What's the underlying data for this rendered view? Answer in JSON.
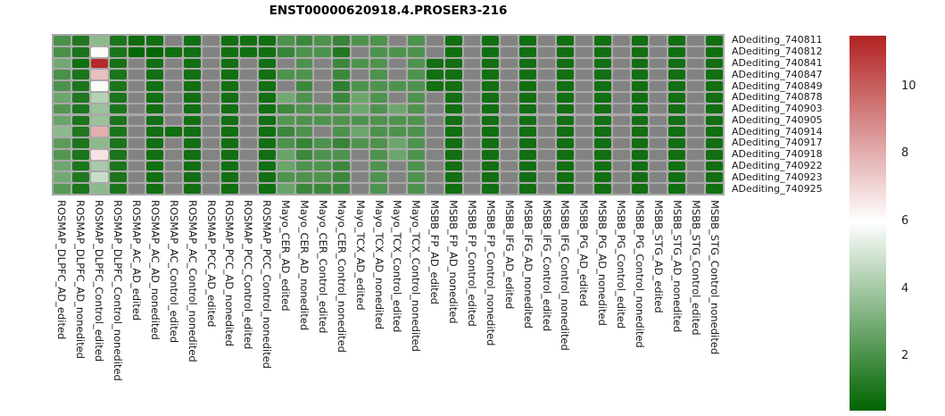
{
  "title": "ENST00000620918.4.PROSER3-216",
  "chart_data": {
    "type": "heatmap",
    "title": "ENST00000620918.4.PROSER3-216",
    "rows": [
      "ADediting_740811",
      "ADediting_740812",
      "ADediting_740841",
      "ADediting_740847",
      "ADediting_740849",
      "ADediting_740878",
      "ADediting_740903",
      "ADediting_740905",
      "ADediting_740914",
      "ADediting_740917",
      "ADediting_740918",
      "ADediting_740922",
      "ADediting_740923",
      "ADediting_740925"
    ],
    "columns": [
      "ROSMAP_DLPFC_AD_edited",
      "ROSMAP_DLPFC_AD_nonedited",
      "ROSMAP_DLPFC_Control_edited",
      "ROSMAP_DLPFC_Control_nonedited",
      "ROSMAP_AC_AD_edited",
      "ROSMAP_AC_AD_nonedited",
      "ROSMAP_AC_Control_edited",
      "ROSMAP_AC_Control_nonedited",
      "ROSMAP_PCC_AD_edited",
      "ROSMAP_PCC_AD_nonedited",
      "ROSMAP_PCC_Control_edited",
      "ROSMAP_PCC_Control_nonedited",
      "Mayo_CER_AD_edited",
      "Mayo_CER_AD_nonedited",
      "Mayo_CER_Control_edited",
      "Mayo_CER_Control_nonedited",
      "Mayo_TCX_AD_edited",
      "Mayo_TCX_AD_nonedited",
      "Mayo_TCX_Control_edited",
      "Mayo_TCX_Control_nonedited",
      "MSBB_FP_AD_edited",
      "MSBB_FP_AD_nonedited",
      "MSBB_FP_Control_edited",
      "MSBB_FP_Control_nonedited",
      "MSBB_IFG_AD_edited",
      "MSBB_IFG_AD_nonedited",
      "MSBB_IFG_Control_edited",
      "MSBB_IFG_Control_nonedited",
      "MSBB_PG_AD_edited",
      "MSBB_PG_AD_nonedited",
      "MSBB_PG_Control_edited",
      "MSBB_PG_Control_nonedited",
      "MSBB_STG_AD_edited",
      "MSBB_STG_AD_nonedited",
      "MSBB_STG_Control_edited",
      "MSBB_STG_Control_nonedited"
    ],
    "values": [
      [
        2.0,
        1.1,
        3.5,
        1.0,
        0.7,
        0.8,
        null,
        0.8,
        null,
        0.8,
        0.8,
        0.8,
        2.1,
        1.7,
        2.1,
        1.6,
        2.1,
        2.1,
        null,
        2.1,
        null,
        0.8,
        null,
        0.8,
        null,
        0.8,
        null,
        0.8,
        null,
        0.8,
        null,
        0.8,
        null,
        0.8,
        null,
        0.8
      ],
      [
        2.0,
        1.0,
        5.9,
        1.0,
        0.5,
        0.5,
        0.8,
        0.8,
        null,
        0.8,
        0.8,
        0.8,
        1.6,
        2.1,
        2.1,
        1.1,
        null,
        2.1,
        2.1,
        2.1,
        null,
        0.8,
        null,
        0.8,
        null,
        0.8,
        null,
        0.8,
        null,
        0.8,
        null,
        0.8,
        null,
        0.8,
        null,
        0.8
      ],
      [
        2.9,
        0.8,
        11.3,
        0.9,
        null,
        0.8,
        null,
        0.8,
        null,
        0.8,
        null,
        0.8,
        null,
        2.1,
        null,
        1.7,
        2.1,
        2.1,
        null,
        2.1,
        0.8,
        0.8,
        null,
        0.8,
        null,
        0.8,
        null,
        0.8,
        null,
        0.8,
        null,
        0.8,
        null,
        0.8,
        null,
        0.8
      ],
      [
        2.0,
        1.0,
        7.6,
        1.0,
        null,
        0.8,
        null,
        0.8,
        null,
        0.8,
        null,
        0.8,
        2.1,
        2.1,
        null,
        1.7,
        null,
        2.1,
        null,
        2.1,
        0.8,
        0.8,
        null,
        0.8,
        null,
        0.8,
        null,
        0.8,
        null,
        0.8,
        null,
        0.8,
        null,
        0.8,
        null,
        0.8
      ],
      [
        2.1,
        1.0,
        5.9,
        1.0,
        null,
        0.8,
        null,
        0.8,
        null,
        0.8,
        null,
        0.8,
        null,
        1.7,
        null,
        1.4,
        2.1,
        2.1,
        2.1,
        2.1,
        0.8,
        0.8,
        null,
        0.8,
        null,
        0.8,
        null,
        0.8,
        null,
        0.8,
        null,
        0.8,
        null,
        0.8,
        null,
        0.8
      ],
      [
        2.8,
        1.1,
        4.4,
        1.0,
        null,
        0.8,
        null,
        0.8,
        null,
        0.8,
        null,
        0.8,
        2.9,
        2.1,
        null,
        1.7,
        2.8,
        2.1,
        null,
        2.1,
        null,
        0.8,
        null,
        0.8,
        null,
        0.8,
        null,
        0.8,
        null,
        0.8,
        null,
        0.8,
        null,
        0.8,
        null,
        0.8
      ],
      [
        2.2,
        1.0,
        3.8,
        1.0,
        null,
        0.8,
        null,
        0.8,
        null,
        0.8,
        null,
        0.8,
        1.7,
        2.1,
        2.1,
        2.1,
        2.8,
        2.1,
        2.8,
        2.1,
        null,
        0.8,
        null,
        0.8,
        null,
        0.8,
        null,
        0.8,
        null,
        0.8,
        null,
        0.8,
        null,
        0.8,
        null,
        0.8
      ],
      [
        2.7,
        1.0,
        3.8,
        1.0,
        null,
        0.8,
        null,
        0.8,
        null,
        0.8,
        null,
        0.8,
        2.2,
        2.1,
        2.1,
        2.1,
        2.1,
        2.1,
        2.1,
        2.1,
        null,
        0.8,
        null,
        0.8,
        null,
        0.8,
        null,
        0.8,
        null,
        0.8,
        null,
        0.8,
        null,
        0.8,
        null,
        0.8
      ],
      [
        3.5,
        1.1,
        8.0,
        1.0,
        null,
        0.8,
        0.8,
        0.8,
        null,
        0.8,
        null,
        0.8,
        1.7,
        2.1,
        null,
        2.1,
        2.8,
        2.1,
        2.1,
        2.1,
        null,
        0.8,
        null,
        0.8,
        null,
        0.8,
        null,
        0.8,
        null,
        0.8,
        null,
        0.8,
        null,
        0.8,
        null,
        0.8
      ],
      [
        2.4,
        1.0,
        3.5,
        1.0,
        null,
        0.8,
        null,
        0.8,
        null,
        0.8,
        null,
        0.8,
        2.1,
        1.6,
        2.1,
        1.6,
        2.1,
        2.1,
        2.8,
        2.1,
        null,
        0.8,
        null,
        0.8,
        null,
        0.8,
        null,
        0.8,
        null,
        0.8,
        null,
        0.8,
        null,
        0.8,
        null,
        0.8
      ],
      [
        2.2,
        1.0,
        6.7,
        1.0,
        null,
        0.8,
        null,
        0.8,
        null,
        0.8,
        null,
        0.8,
        2.7,
        1.7,
        2.1,
        2.1,
        null,
        2.1,
        2.8,
        2.1,
        null,
        0.8,
        null,
        0.8,
        null,
        0.8,
        null,
        0.8,
        null,
        0.8,
        null,
        0.8,
        null,
        0.8,
        null,
        0.8
      ],
      [
        2.8,
        1.0,
        4.1,
        1.0,
        null,
        0.8,
        null,
        0.8,
        null,
        0.8,
        null,
        0.8,
        2.7,
        2.1,
        2.1,
        1.7,
        null,
        2.1,
        null,
        2.1,
        null,
        0.8,
        null,
        0.8,
        null,
        0.8,
        null,
        0.8,
        null,
        0.8,
        null,
        0.8,
        null,
        0.8,
        null,
        0.8
      ],
      [
        2.9,
        1.1,
        4.8,
        1.0,
        null,
        0.8,
        null,
        0.8,
        null,
        0.8,
        null,
        0.8,
        2.1,
        2.1,
        2.1,
        1.7,
        null,
        2.1,
        null,
        2.1,
        null,
        0.8,
        null,
        0.8,
        null,
        0.8,
        null,
        0.8,
        null,
        0.8,
        null,
        0.8,
        null,
        0.8,
        null,
        0.8
      ],
      [
        2.3,
        1.0,
        3.5,
        1.0,
        null,
        0.8,
        null,
        0.8,
        null,
        0.8,
        null,
        0.8,
        2.7,
        1.7,
        1.7,
        1.7,
        null,
        2.1,
        null,
        2.1,
        null,
        0.8,
        null,
        0.8,
        null,
        0.8,
        null,
        0.8,
        null,
        0.8,
        null,
        0.8,
        null,
        0.8,
        null,
        0.8
      ]
    ],
    "na_color": "#838383",
    "grid_background": "#a9a9a9",
    "colormap": {
      "low": "#006400",
      "mid": "#ffffff",
      "high": "#b22222",
      "domain": [
        0.4,
        6,
        11.5
      ]
    },
    "legend": {
      "position": "right",
      "ticks": [
        10,
        8,
        6,
        4,
        2
      ]
    }
  }
}
